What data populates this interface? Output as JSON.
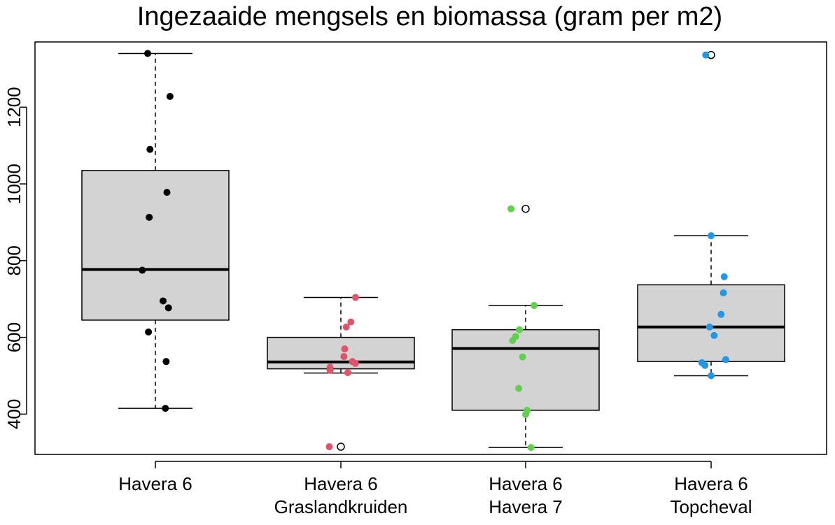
{
  "chart_data": {
    "type": "boxplot",
    "title": "Ingezaaide mengsels en biomassa (gram per m2)",
    "xlabel": "",
    "ylabel": "",
    "ylim": [
      295,
      1370
    ],
    "yticks": [
      400,
      600,
      800,
      1000,
      1200
    ],
    "grid": false,
    "box_fill": "#d3d3d3",
    "groups": [
      {
        "label_lines": [
          "Havera 6"
        ],
        "color": "#000000",
        "stats": {
          "min": 415,
          "q1": 645,
          "median": 777,
          "q3": 1035,
          "max": 1340
        },
        "outliers": [],
        "points": [
          {
            "jitter": -0.1,
            "y": 1340
          },
          {
            "jitter": 0.19,
            "y": 1228
          },
          {
            "jitter": -0.07,
            "y": 1090
          },
          {
            "jitter": 0.15,
            "y": 978
          },
          {
            "jitter": -0.08,
            "y": 913
          },
          {
            "jitter": -0.17,
            "y": 775
          },
          {
            "jitter": 0.1,
            "y": 695
          },
          {
            "jitter": 0.17,
            "y": 677
          },
          {
            "jitter": -0.09,
            "y": 614
          },
          {
            "jitter": 0.14,
            "y": 537
          },
          {
            "jitter": 0.13,
            "y": 415
          }
        ]
      },
      {
        "label_lines": [
          "Havera 6",
          "Graslandkruiden"
        ],
        "color": "#df536b",
        "stats": {
          "min": 507,
          "q1": 518,
          "median": 536,
          "q3": 600,
          "max": 704
        },
        "outliers": [
          315
        ],
        "points": [
          {
            "jitter": 0.19,
            "y": 704
          },
          {
            "jitter": 0.13,
            "y": 640
          },
          {
            "jitter": 0.07,
            "y": 627
          },
          {
            "jitter": 0.05,
            "y": 570
          },
          {
            "jitter": 0.04,
            "y": 550
          },
          {
            "jitter": 0.15,
            "y": 537
          },
          {
            "jitter": 0.19,
            "y": 532
          },
          {
            "jitter": -0.14,
            "y": 522
          },
          {
            "jitter": -0.14,
            "y": 514
          },
          {
            "jitter": 0.09,
            "y": 508
          },
          {
            "jitter": -0.15,
            "y": 315
          }
        ]
      },
      {
        "label_lines": [
          "Havera 6",
          "Havera 7"
        ],
        "color": "#61d04f",
        "stats": {
          "min": 313,
          "q1": 410,
          "median": 571,
          "q3": 620,
          "max": 683
        },
        "outliers": [
          935
        ],
        "points": [
          {
            "jitter": -0.19,
            "y": 935
          },
          {
            "jitter": 0.11,
            "y": 683
          },
          {
            "jitter": -0.08,
            "y": 620
          },
          {
            "jitter": -0.13,
            "y": 602
          },
          {
            "jitter": -0.17,
            "y": 592
          },
          {
            "jitter": -0.04,
            "y": 549
          },
          {
            "jitter": -0.09,
            "y": 467
          },
          {
            "jitter": 0.02,
            "y": 410
          },
          {
            "jitter": 0.0,
            "y": 399
          },
          {
            "jitter": 0.07,
            "y": 313
          }
        ]
      },
      {
        "label_lines": [
          "Havera 6",
          "Topcheval"
        ],
        "color": "#2297e6",
        "stats": {
          "min": 500,
          "q1": 537,
          "median": 627,
          "q3": 737,
          "max": 865
        },
        "outliers": [
          1336
        ],
        "points": [
          {
            "jitter": -0.07,
            "y": 1336
          },
          {
            "jitter": 0.0,
            "y": 865
          },
          {
            "jitter": 0.17,
            "y": 758
          },
          {
            "jitter": 0.16,
            "y": 716
          },
          {
            "jitter": 0.13,
            "y": 660
          },
          {
            "jitter": -0.02,
            "y": 627
          },
          {
            "jitter": 0.04,
            "y": 605
          },
          {
            "jitter": 0.19,
            "y": 542
          },
          {
            "jitter": -0.12,
            "y": 534
          },
          {
            "jitter": -0.08,
            "y": 527
          },
          {
            "jitter": 0.0,
            "y": 500
          }
        ]
      }
    ]
  }
}
